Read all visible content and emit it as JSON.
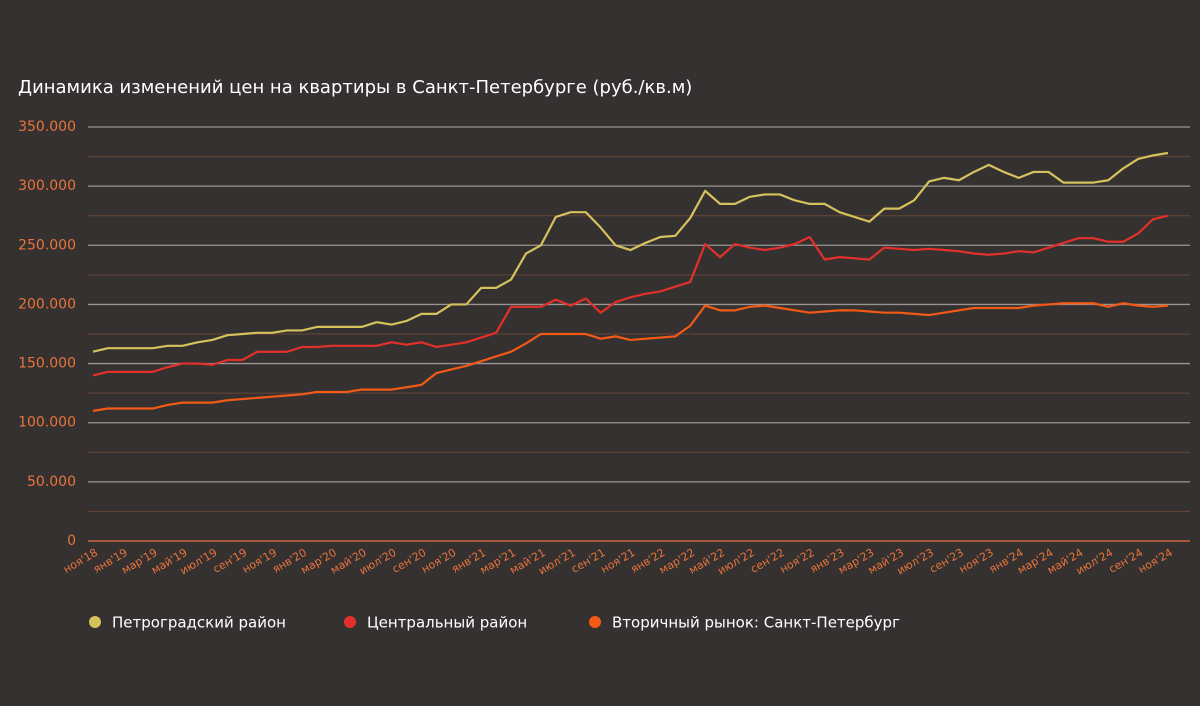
{
  "chart_data": {
    "type": "line",
    "title": "Динамика изменений цен на квартиры в Санкт-Петербурге (руб./кв.м)",
    "categories": [
      "ноя'18",
      null,
      "янв'19",
      null,
      "мар'19",
      null,
      "май'19",
      null,
      "июл'19",
      null,
      "сен'19",
      null,
      "ноя'19",
      null,
      "янв'20",
      null,
      "мар'20",
      null,
      "май'20",
      null,
      "июл'20",
      null,
      "сен'20",
      null,
      "ноя'20",
      null,
      "янв'21",
      null,
      "мар'21",
      null,
      "май'21",
      null,
      "июл'21",
      null,
      "сен'21",
      null,
      "ноя'21",
      null,
      "янв'22",
      null,
      "мар'22",
      null,
      "май'22",
      null,
      "июл'22",
      null,
      "сен'22",
      null,
      "ноя'22",
      null,
      "янв'23",
      null,
      "мар'23",
      null,
      "май'23",
      null,
      "июл'23",
      null,
      "сен'23",
      null,
      "ноя'23",
      null,
      "янв'24",
      null,
      "мар'24",
      null,
      "май'24",
      null,
      "июл'24",
      null,
      "сен'24",
      null,
      "ноя'24"
    ],
    "series": [
      {
        "name": "Петроградский район",
        "color": "#d6c25c",
        "values": [
          160000,
          163000,
          163000,
          163000,
          163000,
          165000,
          165000,
          168000,
          170000,
          174000,
          175000,
          176000,
          176000,
          178000,
          178000,
          181000,
          181000,
          181000,
          181000,
          185000,
          183000,
          186000,
          192000,
          192000,
          200000,
          200000,
          214000,
          214000,
          221000,
          243000,
          250000,
          274000,
          278000,
          278000,
          265000,
          250000,
          246000,
          252000,
          257000,
          258000,
          273000,
          296000,
          285000,
          285000,
          291000,
          293000,
          293000,
          288000,
          285000,
          285000,
          278000,
          274000,
          270000,
          281000,
          281000,
          288000,
          304000,
          307000,
          305000,
          312000,
          318000,
          312000,
          307000,
          312000,
          312000,
          303000,
          303000,
          303000,
          305000,
          315000,
          323000,
          326000,
          328000
        ]
      },
      {
        "name": "Центральный район",
        "color": "#e3302b",
        "values": [
          140000,
          143000,
          143000,
          143000,
          143000,
          147000,
          150000,
          150000,
          149000,
          153000,
          153000,
          160000,
          160000,
          160000,
          164000,
          164000,
          165000,
          165000,
          165000,
          165000,
          168000,
          166000,
          168000,
          164000,
          166000,
          168000,
          172000,
          176000,
          198000,
          198000,
          198000,
          204000,
          199000,
          205000,
          193000,
          202000,
          206000,
          209000,
          211000,
          215000,
          219000,
          251000,
          240000,
          251000,
          248000,
          246000,
          248000,
          251000,
          257000,
          238000,
          240000,
          239000,
          238000,
          248000,
          247000,
          246000,
          247000,
          246000,
          245000,
          243000,
          242000,
          243000,
          245000,
          244000,
          248000,
          252000,
          256000,
          256000,
          253000,
          253000,
          260000,
          272000,
          275000
        ]
      },
      {
        "name": "Вторичный рынок: Санкт-Петербург",
        "color": "#f25a16",
        "values": [
          110000,
          112000,
          112000,
          112000,
          112000,
          115000,
          117000,
          117000,
          117000,
          119000,
          120000,
          121000,
          122000,
          123000,
          124000,
          126000,
          126000,
          126000,
          128000,
          128000,
          128000,
          130000,
          132000,
          142000,
          145000,
          148000,
          152000,
          156000,
          160000,
          167000,
          175000,
          175000,
          175000,
          175000,
          171000,
          173000,
          170000,
          171000,
          172000,
          173000,
          182000,
          199000,
          195000,
          195000,
          198000,
          199000,
          197000,
          195000,
          193000,
          194000,
          195000,
          195000,
          194000,
          193000,
          193000,
          192000,
          191000,
          193000,
          195000,
          197000,
          197000,
          197000,
          197000,
          199000,
          200000,
          201000,
          201000,
          201000,
          198000,
          201000,
          199000,
          198000,
          199000
        ]
      }
    ],
    "ylim": [
      0,
      350000
    ],
    "yticks": [
      0,
      {
        "value": 50000,
        "label": "50.000"
      },
      {
        "value": 100000,
        "label": "100.000"
      },
      {
        "value": 150000,
        "label": "150.000"
      },
      {
        "value": 200000,
        "label": "200.000"
      },
      {
        "value": 250000,
        "label": "250.000"
      },
      {
        "value": 300000,
        "label": "300.000"
      },
      {
        "value": 350000,
        "label": "350.000"
      }
    ],
    "minor_yticks": [
      25000,
      75000,
      125000,
      175000,
      225000,
      275000,
      325000
    ],
    "grid": true
  }
}
